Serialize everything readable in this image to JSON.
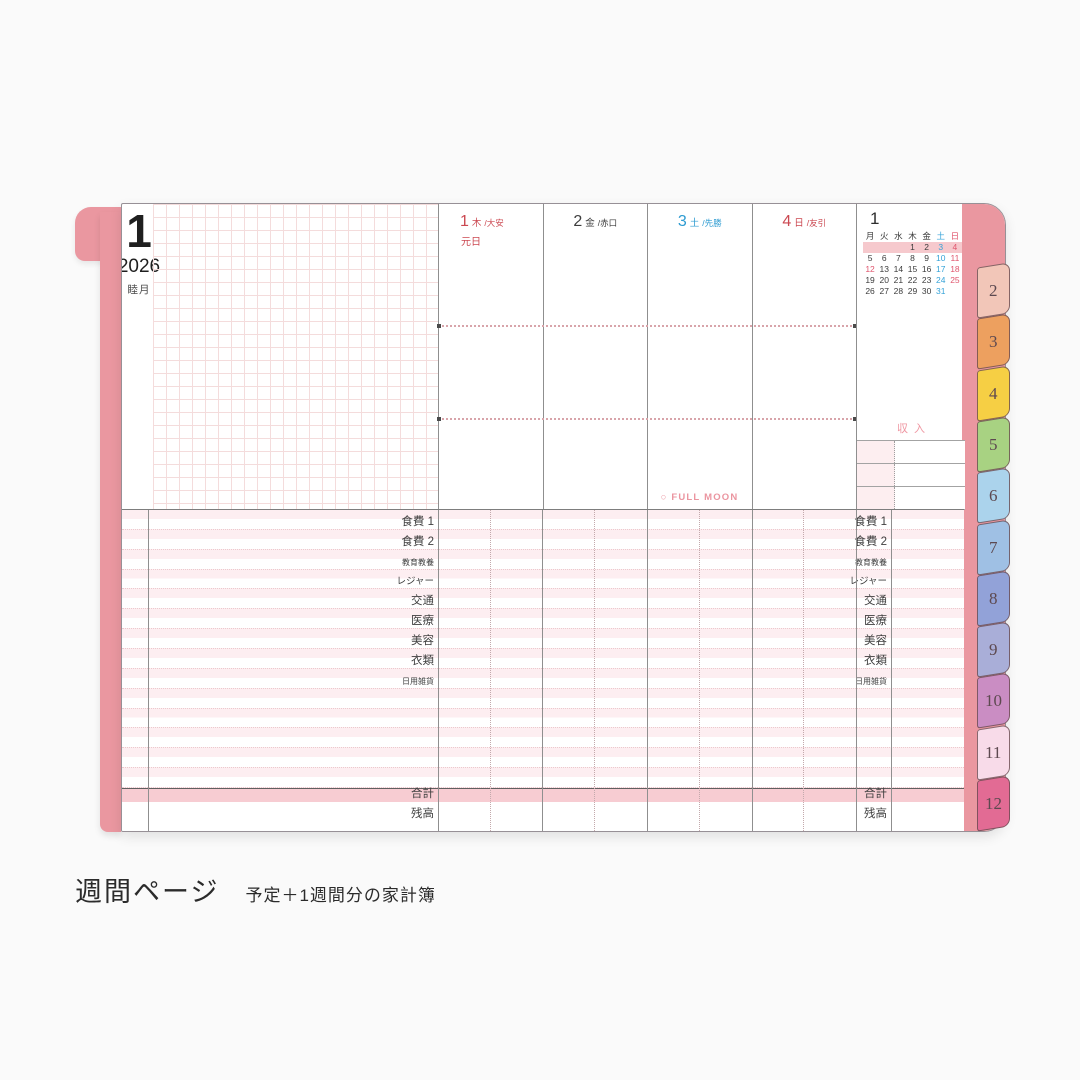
{
  "planner": {
    "month": {
      "number": "1",
      "year": "2026",
      "name": "睦月"
    },
    "days": [
      {
        "num": "1",
        "wd": "木",
        "rokuyo": "/大安",
        "note": "元日",
        "cls": "red first"
      },
      {
        "num": "2",
        "wd": "金",
        "rokuyo": "/赤口",
        "note": "",
        "cls": "gray"
      },
      {
        "num": "3",
        "wd": "土",
        "rokuyo": "/先勝",
        "note": "",
        "cls": "blue"
      },
      {
        "num": "4",
        "wd": "日",
        "rokuyo": "/友引",
        "note": "",
        "cls": "red"
      }
    ],
    "full_moon_label": "○ FULL MOON",
    "mini_calendar": {
      "title": "1",
      "cells": [
        {
          "label": "月",
          "cls": "hd"
        },
        {
          "label": "火",
          "cls": "hd"
        },
        {
          "label": "水",
          "cls": "hd"
        },
        {
          "label": "木",
          "cls": "hd"
        },
        {
          "label": "金",
          "cls": "hd"
        },
        {
          "label": "土",
          "cls": "hd sat"
        },
        {
          "label": "日",
          "cls": "hd sun"
        },
        {
          "label": "",
          "cls": "hl"
        },
        {
          "label": "",
          "cls": "hl"
        },
        {
          "label": "",
          "cls": "hl"
        },
        {
          "label": "1",
          "cls": "hl"
        },
        {
          "label": "2",
          "cls": "hl"
        },
        {
          "label": "3",
          "cls": "hl sat"
        },
        {
          "label": "4",
          "cls": "hl sun"
        },
        {
          "label": "5",
          "cls": ""
        },
        {
          "label": "6",
          "cls": ""
        },
        {
          "label": "7",
          "cls": ""
        },
        {
          "label": "8",
          "cls": ""
        },
        {
          "label": "9",
          "cls": ""
        },
        {
          "label": "10",
          "cls": "sat"
        },
        {
          "label": "11",
          "cls": "sun"
        },
        {
          "label": "12",
          "cls": "sun"
        },
        {
          "label": "13",
          "cls": ""
        },
        {
          "label": "14",
          "cls": ""
        },
        {
          "label": "15",
          "cls": ""
        },
        {
          "label": "16",
          "cls": ""
        },
        {
          "label": "17",
          "cls": "sat"
        },
        {
          "label": "18",
          "cls": "sun"
        },
        {
          "label": "19",
          "cls": ""
        },
        {
          "label": "20",
          "cls": ""
        },
        {
          "label": "21",
          "cls": ""
        },
        {
          "label": "22",
          "cls": ""
        },
        {
          "label": "23",
          "cls": ""
        },
        {
          "label": "24",
          "cls": "sat"
        },
        {
          "label": "25",
          "cls": "sun"
        },
        {
          "label": "26",
          "cls": ""
        },
        {
          "label": "27",
          "cls": ""
        },
        {
          "label": "28",
          "cls": ""
        },
        {
          "label": "29",
          "cls": ""
        },
        {
          "label": "30",
          "cls": ""
        },
        {
          "label": "31",
          "cls": "sat"
        },
        {
          "label": "",
          "cls": ""
        }
      ]
    },
    "income": {
      "title": "収入",
      "rows": [
        "",
        "",
        ""
      ]
    },
    "expense": {
      "rows": [
        {
          "label": "食費 1",
          "cls": ""
        },
        {
          "label": "食費 2",
          "cls": ""
        },
        {
          "label": "教育教養",
          "cls": "sm"
        },
        {
          "label": "レジャー",
          "cls": "md"
        },
        {
          "label": "交通",
          "cls": ""
        },
        {
          "label": "医療",
          "cls": ""
        },
        {
          "label": "美容",
          "cls": ""
        },
        {
          "label": "衣類",
          "cls": ""
        },
        {
          "label": "日用雑貨",
          "cls": "sm"
        },
        {
          "label": "",
          "cls": ""
        },
        {
          "label": "",
          "cls": ""
        },
        {
          "label": "",
          "cls": ""
        },
        {
          "label": "",
          "cls": ""
        },
        {
          "label": "",
          "cls": ""
        }
      ],
      "total_label": "合計",
      "balance_label": "残高"
    },
    "tabs": [
      {
        "label": "2",
        "color": "#f2c6b8"
      },
      {
        "label": "3",
        "color": "#eda05f"
      },
      {
        "label": "4",
        "color": "#f6cf44"
      },
      {
        "label": "5",
        "color": "#a8d282"
      },
      {
        "label": "6",
        "color": "#abd3ec"
      },
      {
        "label": "7",
        "color": "#9fc0e4"
      },
      {
        "label": "8",
        "color": "#92a2d8"
      },
      {
        "label": "9",
        "color": "#a9aed8"
      },
      {
        "label": "10",
        "color": "#ca8dc3"
      },
      {
        "label": "11",
        "color": "#f8dbe9"
      },
      {
        "label": "12",
        "color": "#e26b94"
      }
    ],
    "colors": {
      "cover_pink": "#ea97a0",
      "week_highlight": "#f6c9cd",
      "total_band": "#f7ccd2",
      "holiday_red": "#cb4851",
      "saturday_blue": "#2d9bd1"
    }
  },
  "caption": {
    "title": "週間ページ",
    "sub": "予定＋1週間分の家計簿"
  }
}
